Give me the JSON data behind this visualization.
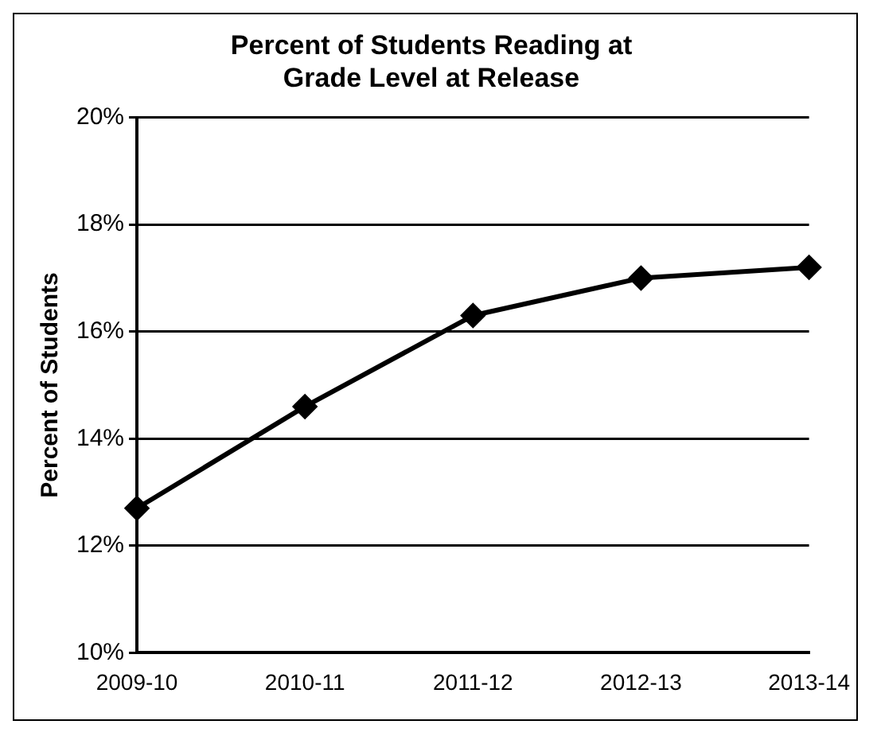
{
  "chart_data": {
    "type": "line",
    "title": "Percent of Students Reading at\nGrade Level at Release",
    "ylabel": "Percent of Students",
    "categories": [
      "2009-10",
      "2010-11",
      "2011-12",
      "2012-13",
      "2013-14"
    ],
    "series": [
      {
        "color": "#000000",
        "values": [
          12.7,
          14.6,
          16.3,
          17.0,
          17.2
        ]
      }
    ],
    "ylim": [
      10,
      20
    ],
    "yticks": [
      {
        "value": 10,
        "label": "10%"
      },
      {
        "value": 12,
        "label": "12%"
      },
      {
        "value": 14,
        "label": "14%"
      },
      {
        "value": 16,
        "label": "16%"
      },
      {
        "value": 18,
        "label": "18%"
      },
      {
        "value": 20,
        "label": "20%"
      }
    ],
    "grid": "y",
    "marker": "diamond",
    "line_style": "solid",
    "legend": false
  }
}
